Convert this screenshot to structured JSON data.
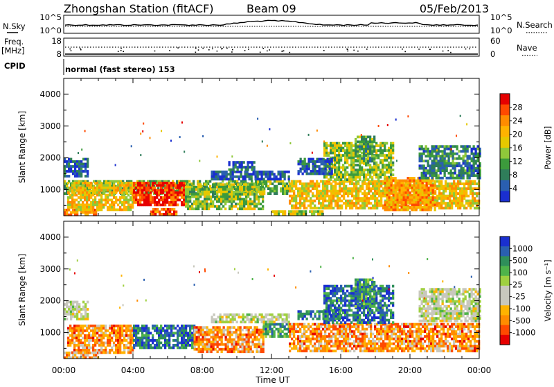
{
  "header": {
    "station": "Zhongshan Station (fitACF)",
    "beam": "Beam 09",
    "date": "05/Feb/2013"
  },
  "panels": {
    "noise": {
      "left_label": "N.Sky",
      "right_label": "N.Search",
      "left_ticks": [
        "10^5",
        "10^0"
      ],
      "right_ticks": [
        "10^5",
        "10^0"
      ]
    },
    "freq": {
      "left_label_1": "Freq.",
      "left_label_2": "[MHz]",
      "right_label": "Nave",
      "left_ticks": [
        "18",
        "8"
      ],
      "right_ticks": [
        "60",
        "0"
      ]
    },
    "cpid": {
      "label": "CPID",
      "text": "normal (fast stereo) 153"
    }
  },
  "chart_data": [
    {
      "type": "heatmap",
      "name": "Power",
      "ylabel": "Slant Range [km]",
      "xlabel": "Time UT",
      "x_ticks": [
        "00:00",
        "04:00",
        "08:00",
        "12:00",
        "16:00",
        "20:00",
        "00:00"
      ],
      "xlim_hours": [
        0,
        24
      ],
      "ylim": [
        180,
        4500
      ],
      "y_ticks": [
        1000,
        2000,
        3000,
        4000
      ],
      "colorbar": {
        "label": "Power [dB]",
        "ticks": [
          "28",
          "24",
          "20",
          "16",
          "12",
          "8",
          "4"
        ],
        "colors": [
          "#e60000",
          "#ff4a00",
          "#ff8c00",
          "#ffb300",
          "#e6c800",
          "#8fc83a",
          "#3c9b3c",
          "#2f7d5a",
          "#2a5fb0",
          "#1a2fd0"
        ]
      },
      "regions": [
        {
          "t": [
            0.0,
            2.0
          ],
          "r": [
            200,
            400
          ],
          "level": 0.75
        },
        {
          "t": [
            0.0,
            1.4
          ],
          "r": [
            1400,
            2000
          ],
          "level": 0.15
        },
        {
          "t": [
            0.0,
            13.0
          ],
          "r": [
            900,
            1300
          ],
          "level": 0.4
        },
        {
          "t": [
            0.2,
            4.0
          ],
          "r": [
            400,
            1250
          ],
          "level": 0.6
        },
        {
          "t": [
            4.0,
            7.0
          ],
          "r": [
            500,
            1250
          ],
          "level": 0.9
        },
        {
          "t": [
            7.0,
            11.5
          ],
          "r": [
            400,
            1200
          ],
          "level": 0.45
        },
        {
          "t": [
            5.0,
            6.5
          ],
          "r": [
            200,
            420
          ],
          "level": 0.85
        },
        {
          "t": [
            8.5,
            13.0
          ],
          "r": [
            1300,
            1600
          ],
          "level": 0.15
        },
        {
          "t": [
            9.5,
            11.0
          ],
          "r": [
            1600,
            1900
          ],
          "level": 0.15
        },
        {
          "t": [
            12.0,
            15.0
          ],
          "r": [
            250,
            350
          ],
          "level": 0.5
        },
        {
          "t": [
            13.0,
            24.0
          ],
          "r": [
            450,
            1300
          ],
          "level": 0.6
        },
        {
          "t": [
            15.0,
            19.0
          ],
          "r": [
            1300,
            2500
          ],
          "level": 0.45
        },
        {
          "t": [
            16.8,
            18.0
          ],
          "r": [
            1800,
            2700
          ],
          "level": 0.35
        },
        {
          "t": [
            18.5,
            21.5
          ],
          "r": [
            400,
            1400
          ],
          "level": 0.7
        },
        {
          "t": [
            20.5,
            24.0
          ],
          "r": [
            1400,
            2400
          ],
          "level": 0.25
        },
        {
          "t": [
            13.5,
            15.5
          ],
          "r": [
            1500,
            2000
          ],
          "level": 0.15
        }
      ]
    },
    {
      "type": "heatmap",
      "name": "Velocity",
      "ylabel": "Slant Range [km]",
      "xlabel": "Time UT",
      "x_ticks": [
        "00:00",
        "04:00",
        "08:00",
        "12:00",
        "16:00",
        "20:00",
        "00:00"
      ],
      "xlim_hours": [
        0,
        24
      ],
      "ylim": [
        180,
        4500
      ],
      "y_ticks": [
        1000,
        2000,
        3000,
        4000
      ],
      "colorbar": {
        "label": "Velocity [m s⁻¹]",
        "ticks": [
          "1000",
          "500",
          "100",
          "25",
          "-25",
          "-100",
          "-500",
          "-1000"
        ],
        "colors": [
          "#1a2fd0",
          "#2a5fb0",
          "#2f8f5a",
          "#4fb34a",
          "#9fd040",
          "#c8c8bd",
          "#c8c8bd",
          "#ffb300",
          "#ff8c00",
          "#ff4a00",
          "#e60000"
        ]
      },
      "regions": [
        {
          "t": [
            0.0,
            2.0
          ],
          "r": [
            200,
            400
          ],
          "level": 0.3
        },
        {
          "t": [
            0.0,
            1.4
          ],
          "r": [
            1400,
            2000
          ],
          "level": 0.5
        },
        {
          "t": [
            0.2,
            4.0
          ],
          "r": [
            400,
            1250
          ],
          "level": 0.25
        },
        {
          "t": [
            4.0,
            7.5
          ],
          "r": [
            500,
            1250
          ],
          "level": 0.85
        },
        {
          "t": [
            7.5,
            11.5
          ],
          "r": [
            400,
            1200
          ],
          "level": 0.25
        },
        {
          "t": [
            11.5,
            13.0
          ],
          "r": [
            900,
            1300
          ],
          "level": 0.75
        },
        {
          "t": [
            8.5,
            13.0
          ],
          "r": [
            1300,
            1600
          ],
          "level": 0.5
        },
        {
          "t": [
            13.0,
            24.0
          ],
          "r": [
            450,
            1300
          ],
          "level": 0.25
        },
        {
          "t": [
            15.0,
            19.0
          ],
          "r": [
            1300,
            2500
          ],
          "level": 0.85
        },
        {
          "t": [
            16.8,
            18.0
          ],
          "r": [
            1800,
            2700
          ],
          "level": 0.75
        },
        {
          "t": [
            20.5,
            24.0
          ],
          "r": [
            1400,
            2400
          ],
          "level": 0.5
        },
        {
          "t": [
            13.5,
            16.0
          ],
          "r": [
            1400,
            1700
          ],
          "level": 0.8
        }
      ]
    }
  ]
}
